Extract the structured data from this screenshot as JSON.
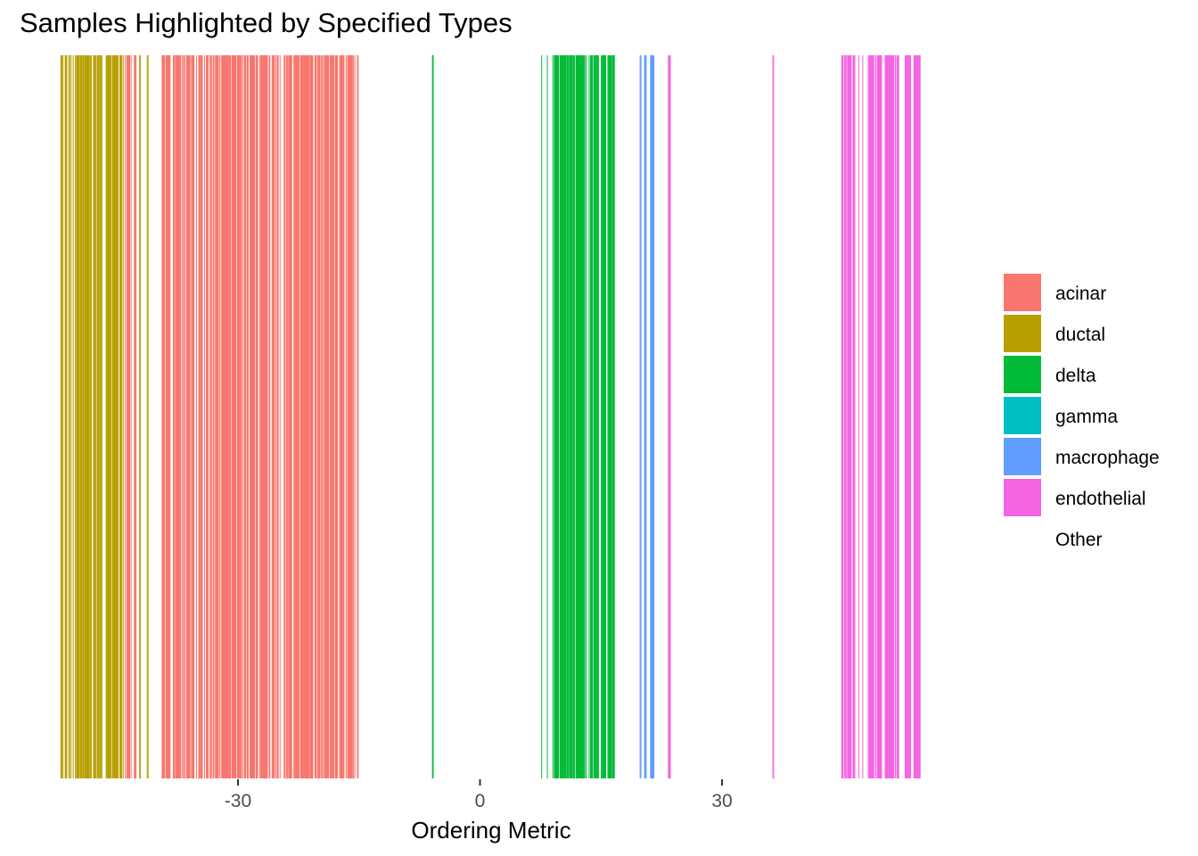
{
  "chart_data": {
    "type": "bar",
    "subtype": "strip (one vertical bar per sample)",
    "title": "Samples Highlighted by Specified Types",
    "xlabel": "Ordering Metric",
    "ylabel": "",
    "xlim": [
      -52.5,
      55.5
    ],
    "x_ticks": [
      -30,
      0,
      30
    ],
    "x_tick_labels": [
      "-30",
      "0",
      "30"
    ],
    "grid": false,
    "legend_position": "right",
    "categories": [
      {
        "name": "acinar",
        "color": "#F8766D"
      },
      {
        "name": "ductal",
        "color": "#B79F00"
      },
      {
        "name": "delta",
        "color": "#00BA38"
      },
      {
        "name": "gamma",
        "color": "#00BFC4"
      },
      {
        "name": "macrophage",
        "color": "#619CFF"
      },
      {
        "name": "endothelial",
        "color": "#F564E3"
      },
      {
        "name": "Other",
        "color": "#FFFFFF"
      }
    ],
    "series": [
      {
        "name": "ductal",
        "ranges": [
          [
            -52,
            -44
          ],
          [
            -42.4,
            -42
          ],
          [
            -41.3,
            -41.1
          ]
        ],
        "density": 0.66
      },
      {
        "name": "acinar",
        "ranges": [
          [
            -44,
            -43.2
          ],
          [
            -43,
            -42.6
          ],
          [
            -39.5,
            -15.1
          ]
        ],
        "density": 0.74
      },
      {
        "name": "delta",
        "ranges": [
          [
            -5.9,
            -5.8
          ],
          [
            7.6,
            7.7
          ],
          [
            8.3,
            8.4
          ],
          [
            9.0,
            16.7
          ]
        ],
        "density": 0.72
      },
      {
        "name": "macrophage",
        "ranges": [
          [
            19.8,
            20.0
          ],
          [
            20.4,
            20.6
          ],
          [
            21.1,
            21.6
          ]
        ],
        "density": 0.8
      },
      {
        "name": "endothelial",
        "ranges": [
          [
            23.3,
            23.6
          ],
          [
            36.3,
            36.4
          ],
          [
            44.8,
            46.6
          ],
          [
            46.9,
            47.0
          ],
          [
            47.4,
            47.5
          ],
          [
            48.1,
            51.9
          ],
          [
            52.7,
            54.7
          ]
        ],
        "density": 0.74
      }
    ]
  }
}
